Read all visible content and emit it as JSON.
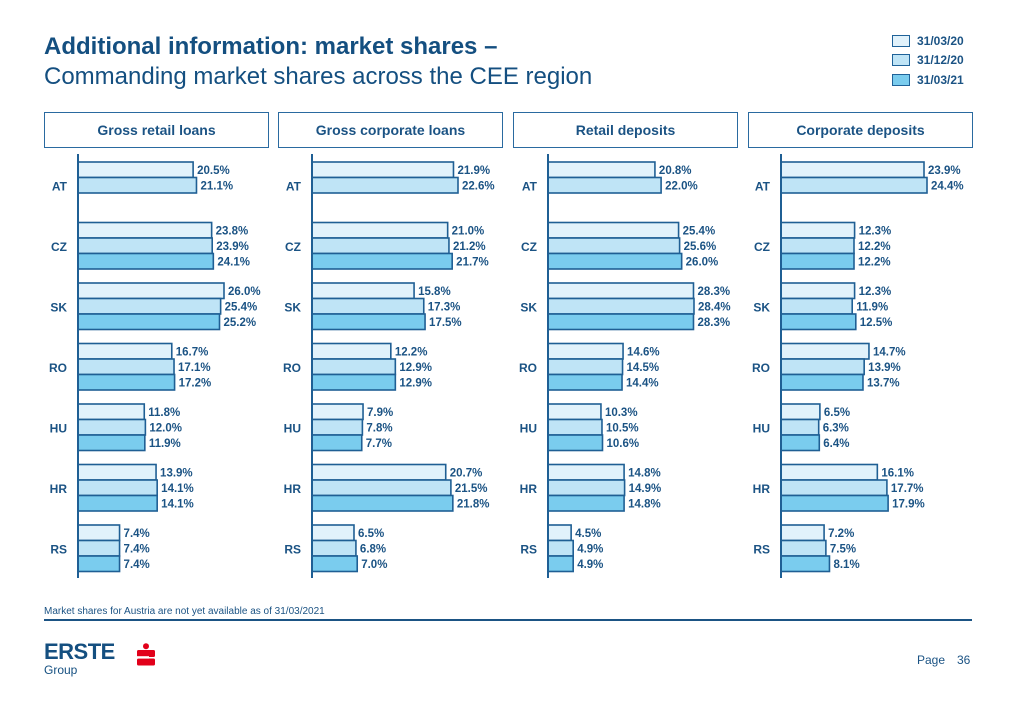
{
  "header": {
    "title_bold": "Additional information: market shares –",
    "title_sub": "Commanding market shares across the CEE region"
  },
  "colors": {
    "series": [
      "#e1f2fb",
      "#bfe4f6",
      "#7accee"
    ],
    "bar_border": "#1f5f94",
    "text": "#1b5384",
    "brand_red": "#e2001a"
  },
  "legend": {
    "items": [
      {
        "label": "31/03/20"
      },
      {
        "label": "31/12/20"
      },
      {
        "label": "31/03/21"
      }
    ]
  },
  "chart_data": [
    {
      "type": "bar",
      "orientation": "horizontal",
      "title": "Gross retail loans",
      "categories": [
        "AT",
        "CZ",
        "SK",
        "RO",
        "HU",
        "HR",
        "RS"
      ],
      "series": [
        {
          "name": "31/03/20",
          "values": [
            20.5,
            23.8,
            26.0,
            16.7,
            11.8,
            13.9,
            7.4
          ]
        },
        {
          "name": "31/12/20",
          "values": [
            21.1,
            23.9,
            25.4,
            17.1,
            12.0,
            14.1,
            7.4
          ]
        },
        {
          "name": "31/03/21",
          "values": [
            null,
            24.1,
            25.2,
            17.2,
            11.9,
            14.1,
            7.4
          ]
        }
      ],
      "value_format": "percent_1dp",
      "xlim": [
        0,
        26.0
      ]
    },
    {
      "type": "bar",
      "orientation": "horizontal",
      "title": "Gross corporate loans",
      "categories": [
        "AT",
        "CZ",
        "SK",
        "RO",
        "HU",
        "HR",
        "RS"
      ],
      "series": [
        {
          "name": "31/03/20",
          "values": [
            21.9,
            21.0,
            15.8,
            12.2,
            7.9,
            20.7,
            6.5
          ]
        },
        {
          "name": "31/12/20",
          "values": [
            22.6,
            21.2,
            17.3,
            12.9,
            7.8,
            21.5,
            6.8
          ]
        },
        {
          "name": "31/03/21",
          "values": [
            null,
            21.7,
            17.5,
            12.9,
            7.7,
            21.8,
            7.0
          ]
        }
      ],
      "value_format": "percent_1dp",
      "xlim": [
        0,
        22.6
      ]
    },
    {
      "type": "bar",
      "orientation": "horizontal",
      "title": "Retail deposits",
      "categories": [
        "AT",
        "CZ",
        "SK",
        "RO",
        "HU",
        "HR",
        "RS"
      ],
      "series": [
        {
          "name": "31/03/20",
          "values": [
            20.8,
            25.4,
            28.3,
            14.6,
            10.3,
            14.8,
            4.5
          ]
        },
        {
          "name": "31/12/20",
          "values": [
            22.0,
            25.6,
            28.4,
            14.5,
            10.5,
            14.9,
            4.9
          ]
        },
        {
          "name": "31/03/21",
          "values": [
            null,
            26.0,
            28.3,
            14.4,
            10.6,
            14.8,
            4.9
          ]
        }
      ],
      "value_format": "percent_1dp",
      "xlim": [
        0,
        28.4
      ]
    },
    {
      "type": "bar",
      "orientation": "horizontal",
      "title": "Corporate deposits",
      "categories": [
        "AT",
        "CZ",
        "SK",
        "RO",
        "HU",
        "HR",
        "RS"
      ],
      "series": [
        {
          "name": "31/03/20",
          "values": [
            23.9,
            12.3,
            12.3,
            14.7,
            6.5,
            16.1,
            7.2
          ]
        },
        {
          "name": "31/12/20",
          "values": [
            24.4,
            12.2,
            11.9,
            13.9,
            6.3,
            17.7,
            7.5
          ]
        },
        {
          "name": "31/03/21",
          "values": [
            null,
            12.2,
            12.5,
            13.7,
            6.4,
            17.9,
            8.1
          ]
        }
      ],
      "value_format": "percent_1dp",
      "xlim": [
        0,
        24.4
      ]
    }
  ],
  "footer": {
    "note": "Market shares for Austria are not yet available as of 31/03/2021",
    "logo_text": "ERSTE",
    "logo_sub": "Group",
    "page_label": "Page",
    "page_number": "36"
  }
}
